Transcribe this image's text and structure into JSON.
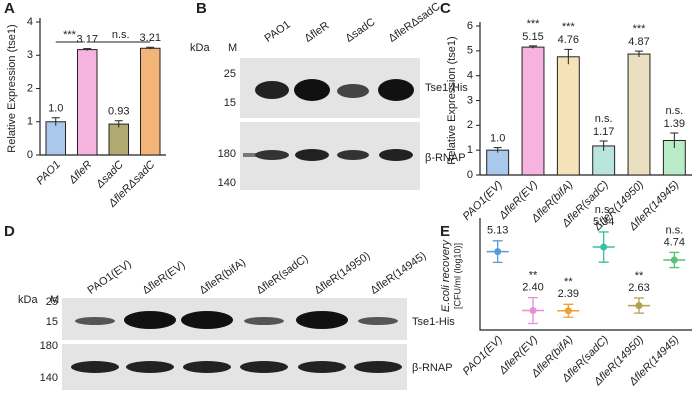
{
  "panel_labels": [
    "A",
    "B",
    "C",
    "D",
    "E"
  ],
  "blots": [
    {
      "kda": "kDa",
      "marker_lane": "M",
      "lanes": [
        "PAO1",
        "ΔfleR",
        "ΔsadC",
        "ΔfleRΔsadC"
      ],
      "markers_top": [
        25,
        15
      ],
      "markers_bottom": [
        180,
        140
      ],
      "targets": [
        "Tse1-His",
        "β-RNAP"
      ]
    },
    {
      "kda": "kDa",
      "marker_lane": "M",
      "lanes": [
        "PAO1(EV)",
        "ΔfleR(EV)",
        "ΔfleR(bifA)",
        "ΔfleR(sadC)",
        "ΔfleR(14950)",
        "ΔfleR(14945)"
      ],
      "markers_top": [
        25,
        15
      ],
      "markers_bottom": [
        180,
        140
      ],
      "targets": [
        "Tse1-His",
        "β-RNAP"
      ]
    }
  ],
  "chart_data": [
    {
      "type": "bar",
      "y_label": "Relative Expression (tse1)",
      "categories": [
        "PAO1",
        "ΔfleR",
        "ΔsadC",
        "ΔfleRΔsadC"
      ],
      "values": [
        1.0,
        3.17,
        0.93,
        3.21
      ],
      "value_labels": [
        "1.0",
        "3.17",
        "0.93",
        "3.21"
      ],
      "errors": [
        0.12,
        0.03,
        0.1,
        0.03
      ],
      "colors": [
        "#a9c8ec",
        "#f6b3e0",
        "#b0aa72",
        "#f2b479"
      ],
      "brackets": [
        {
          "label": "***",
          "between": [
            0,
            1
          ]
        },
        {
          "label": "n.s.",
          "between": [
            1,
            3
          ]
        }
      ],
      "ylim": [
        0,
        4
      ],
      "yticks": [
        0,
        1,
        2,
        3,
        4
      ]
    },
    {
      "type": "bar",
      "y_label": "Relative Expression (tse1)",
      "categories": [
        "PAO1(EV)",
        "ΔfleR(EV)",
        "ΔfleR(bifA)",
        "ΔfleR(sadC)",
        "ΔfleR(14950)",
        "ΔfleR(14945)"
      ],
      "values": [
        1.0,
        5.15,
        4.76,
        1.17,
        4.87,
        1.39
      ],
      "value_labels": [
        "1.0",
        "5.15",
        "4.76",
        "1.17",
        "4.87",
        "1.39"
      ],
      "errors": [
        0.1,
        0.05,
        0.3,
        0.2,
        0.12,
        0.3
      ],
      "colors": [
        "#a9c8ec",
        "#f6b3e0",
        "#f6e2b8",
        "#b8e6df",
        "#eadfc0",
        "#b9ecc6"
      ],
      "annotations": [
        null,
        "***",
        "***",
        "n.s.",
        "***",
        "n.s."
      ],
      "ylim": [
        0,
        6
      ],
      "yticks": [
        0,
        1,
        2,
        3,
        4,
        5,
        6
      ]
    },
    {
      "type": "dot",
      "y_label": "E.coli recovery",
      "y_label_2": "[CFU/ml (log10)]",
      "categories": [
        "PAO1(EV)",
        "ΔfleR(EV)",
        "ΔfleR(bifA)",
        "ΔfleR(sadC)",
        "ΔfleR(14950)",
        "ΔfleR(14945)"
      ],
      "values": [
        5.13,
        2.4,
        2.39,
        5.34,
        2.63,
        4.74
      ],
      "value_labels": [
        "5.13",
        "2.40",
        "2.39",
        "5.34",
        "2.63",
        "4.74"
      ],
      "errors": [
        0.5,
        0.6,
        0.3,
        0.7,
        0.35,
        0.35
      ],
      "colors": [
        "#5b9bd5",
        "#e58fd6",
        "#f0a030",
        "#38c0a0",
        "#b0a050",
        "#58c078"
      ],
      "annotations": [
        null,
        "**",
        "**",
        "n.s.",
        "**",
        "n.s."
      ],
      "ylim": [
        1.5,
        6.5
      ]
    }
  ]
}
